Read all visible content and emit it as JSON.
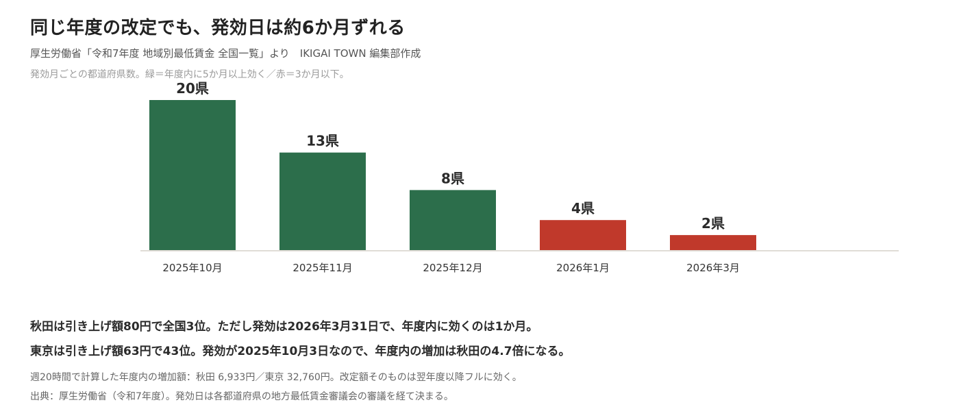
{
  "header": {
    "title": "同じ年度の改定でも、発効日は約6か月ずれる",
    "source": "厚生労働省「令和7年度 地域別最低賃金 全国一覧」より　IKIGAI TOWN 編集部作成",
    "note": "発効月ごとの都道府県数。緑＝年度内に5か月以上効く／赤＝3か月以下。"
  },
  "chart_data": {
    "type": "bar",
    "categories": [
      "2025年10月",
      "2025年11月",
      "2025年12月",
      "2026年1月",
      "2026年3月"
    ],
    "values": [
      20,
      13,
      8,
      4,
      2
    ],
    "value_labels": [
      "20県",
      "13県",
      "8県",
      "4県",
      "2県"
    ],
    "bar_colors": [
      "#2c6e4b",
      "#2c6e4b",
      "#2c6e4b",
      "#c0392b",
      "#c0392b"
    ],
    "ylim": [
      0,
      20
    ],
    "grid": false,
    "legend": "none"
  },
  "findings": {
    "line1": "秋田は引き上げ額80円で全国3位。ただし発効は2026年3月31日で、年度内に効くのは1か月。",
    "line2": "東京は引き上げ額63円で43位。発効が2025年10月3日なので、年度内の増加は秋田の4.7倍になる。"
  },
  "footnotes": {
    "calc": "週20時間で計算した年度内の増加額：秋田 6,933円／東京 32,760円。改定額そのものは翌年度以降フルに効く。",
    "source": "出典：厚生労働省（令和7年度）。発効日は各都道府県の地方最低賃金審議会の審議を経て決まる。"
  },
  "colors": {
    "green": "#2c6e4b",
    "red": "#c0392b",
    "axis": "#e0dcd6"
  }
}
